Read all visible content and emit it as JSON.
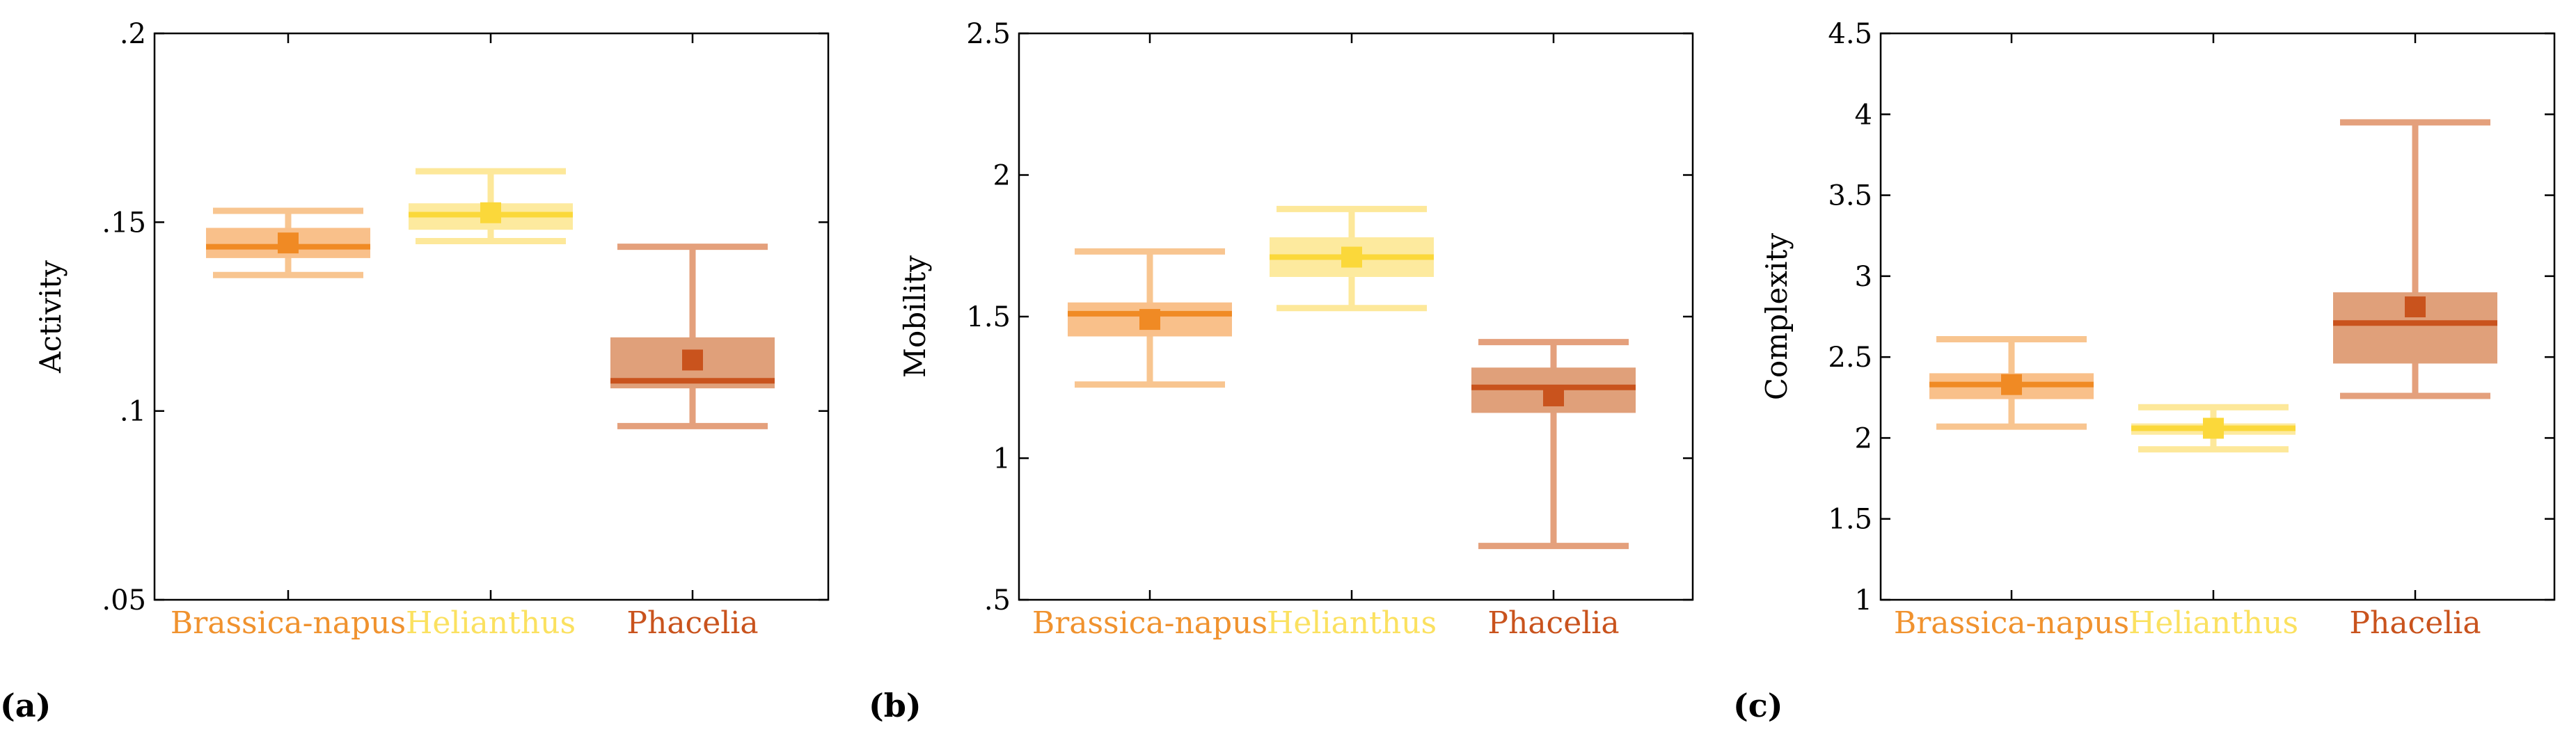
{
  "chart_data": [
    {
      "type": "box",
      "panel_label": "(a)",
      "ylabel": "Activity",
      "ylim": [
        0.05,
        0.2
      ],
      "yticks": [
        0.05,
        0.1,
        0.15,
        0.2
      ],
      "ytick_labels": [
        ".05",
        ".1",
        ".15",
        ".2"
      ],
      "categories": [
        "Brassica-napus",
        "Helianthus",
        "Phacelia"
      ],
      "boxes": [
        {
          "name": "Brassica-napus",
          "whisker_low": 0.136,
          "q1": 0.1405,
          "median": 0.1435,
          "q3": 0.1485,
          "whisker_high": 0.153,
          "mean": 0.1445
        },
        {
          "name": "Helianthus",
          "whisker_low": 0.145,
          "q1": 0.148,
          "median": 0.152,
          "q3": 0.155,
          "whisker_high": 0.1635,
          "mean": 0.1525
        },
        {
          "name": "Phacelia",
          "whisker_low": 0.096,
          "q1": 0.106,
          "median": 0.108,
          "q3": 0.1195,
          "whisker_high": 0.1435,
          "mean": 0.1135
        }
      ]
    },
    {
      "type": "box",
      "panel_label": "(b)",
      "ylabel": "Mobility",
      "ylim": [
        0.5,
        2.5
      ],
      "yticks": [
        0.5,
        1,
        1.5,
        2,
        2.5
      ],
      "ytick_labels": [
        ".5",
        "1",
        "1.5",
        "2",
        "2.5"
      ],
      "categories": [
        "Brassica-napus",
        "Helianthus",
        "Phacelia"
      ],
      "boxes": [
        {
          "name": "Brassica-napus",
          "whisker_low": 1.26,
          "q1": 1.43,
          "median": 1.51,
          "q3": 1.55,
          "whisker_high": 1.73,
          "mean": 1.49
        },
        {
          "name": "Helianthus",
          "whisker_low": 1.53,
          "q1": 1.64,
          "median": 1.71,
          "q3": 1.78,
          "whisker_high": 1.88,
          "mean": 1.71
        },
        {
          "name": "Phacelia",
          "whisker_low": 0.69,
          "q1": 1.16,
          "median": 1.25,
          "q3": 1.32,
          "whisker_high": 1.41,
          "mean": 1.22
        }
      ]
    },
    {
      "type": "box",
      "panel_label": "(c)",
      "ylabel": "Complexity",
      "ylim": [
        1,
        4.5
      ],
      "yticks": [
        1,
        1.5,
        2,
        2.5,
        3,
        3.5,
        4,
        4.5
      ],
      "ytick_labels": [
        "1",
        "1.5",
        "2",
        "2.5",
        "3",
        "3.5",
        "4",
        "4.5"
      ],
      "categories": [
        "Brassica-napus",
        "Helianthus",
        "Phacelia"
      ],
      "boxes": [
        {
          "name": "Brassica-napus",
          "whisker_low": 2.07,
          "q1": 2.24,
          "median": 2.33,
          "q3": 2.4,
          "whisker_high": 2.61,
          "mean": 2.33
        },
        {
          "name": "Helianthus",
          "whisker_low": 1.93,
          "q1": 2.02,
          "median": 2.06,
          "q3": 2.09,
          "whisker_high": 2.19,
          "mean": 2.06
        },
        {
          "name": "Phacelia",
          "whisker_low": 2.26,
          "q1": 2.46,
          "median": 2.71,
          "q3": 2.9,
          "whisker_high": 3.95,
          "mean": 2.81
        }
      ]
    }
  ],
  "colors": {
    "Brassica-napus": {
      "label": "#f0922e",
      "whisker": "#f8c590",
      "box": "#f9c08a",
      "median": "#f08a24",
      "mean": "#f08a24"
    },
    "Helianthus": {
      "label": "#fbe160",
      "whisker": "#fde89a",
      "box": "#fdea9e",
      "median": "#fbd83a",
      "mean": "#fbd83a"
    },
    "Phacelia": {
      "label": "#c9531d",
      "whisker": "#e4a07c",
      "box": "#e0a07a",
      "median": "#c9531d",
      "mean": "#c9531d"
    }
  }
}
